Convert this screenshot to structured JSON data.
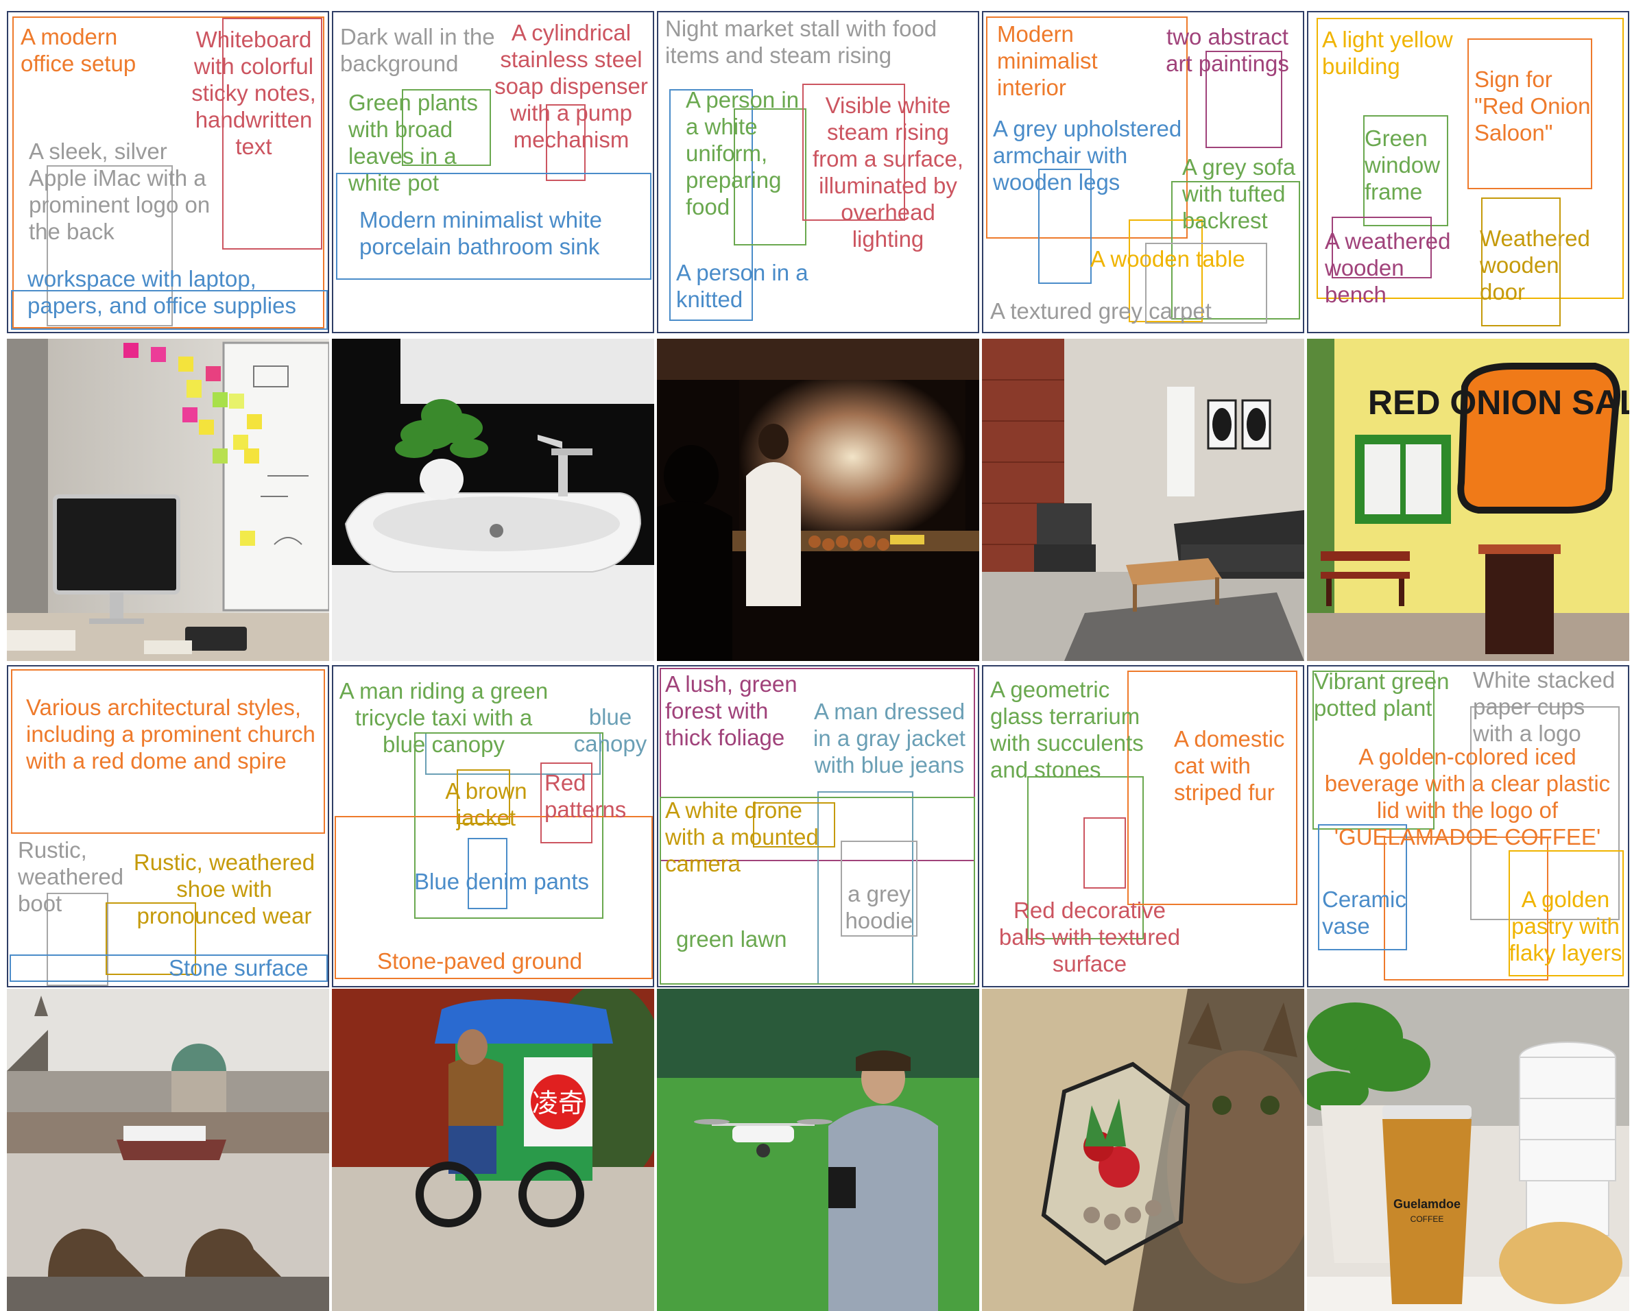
{
  "rows": [
    {
      "layouts": [
        {
          "labels": [
            {
              "text": "A modern\noffice setup",
              "color": "orange"
            },
            {
              "text": "Whiteboard\nwith colorful\nsticky notes,\nhandwritten\ntext",
              "color": "red"
            },
            {
              "text": "A sleek, silver\nApple iMac with a\nprominent logo on\nthe back",
              "color": "gray"
            },
            {
              "text": "workspace with laptop,\npapers, and office supplies",
              "color": "blue"
            }
          ]
        },
        {
          "labels": [
            {
              "text": "Dark wall in the\nbackground",
              "color": "gray"
            },
            {
              "text": "A cylindrical\nstainless steel\nsoap dispenser\nwith a pump\nmechanism",
              "color": "red"
            },
            {
              "text": "Green plants\nwith broad\nleaves in a\nwhite pot",
              "color": "green"
            },
            {
              "text": "Modern minimalist white\nporcelain bathroom sink",
              "color": "blue"
            }
          ]
        },
        {
          "labels": [
            {
              "text": "Night market stall with food\nitems and steam rising",
              "color": "gray"
            },
            {
              "text": "A person in\na white\nuniform,\npreparing\nfood",
              "color": "green"
            },
            {
              "text": "Visible white\nsteam rising\nfrom a surface,\nilluminated by\noverhead\nlighting",
              "color": "red"
            },
            {
              "text": "A person in a\nknitted",
              "color": "blue"
            }
          ]
        },
        {
          "labels": [
            {
              "text": "Modern\nminimalist\ninterior",
              "color": "orange"
            },
            {
              "text": "two abstract\nart paintings",
              "color": "purple"
            },
            {
              "text": "A grey upholstered\narmchair with\nwooden legs",
              "color": "blue"
            },
            {
              "text": "A grey sofa\nwith tufted\nbackrest",
              "color": "green"
            },
            {
              "text": "A wooden table",
              "color": "yellow"
            },
            {
              "text": "A textured grey carpet",
              "color": "gray"
            }
          ]
        },
        {
          "labels": [
            {
              "text": "A light yellow\nbuilding",
              "color": "yellow"
            },
            {
              "text": "Sign for\n\"Red Onion\nSaloon\"",
              "color": "orange"
            },
            {
              "text": "Green\nwindow\nframe",
              "color": "green"
            },
            {
              "text": "A weathered\nwooden\nbench",
              "color": "purple"
            },
            {
              "text": "Weathered\nwooden\ndoor",
              "color": "gold"
            }
          ]
        }
      ],
      "photos": [
        {
          "sign_text": ""
        },
        {
          "sign_text": ""
        },
        {
          "sign_text": ""
        },
        {
          "sign_text": ""
        },
        {
          "sign_text": "RED ONION SALOIN"
        }
      ]
    },
    {
      "layouts": [
        {
          "labels": [
            {
              "text": "Various architectural styles,\nincluding a prominent church\nwith a red dome and spire",
              "color": "orange"
            },
            {
              "text": "Rustic,\nweathered\nboot",
              "color": "gray"
            },
            {
              "text": "Rustic, weathered\nshoe with\npronounced wear",
              "color": "gold"
            },
            {
              "text": "Stone surface",
              "color": "blue"
            }
          ]
        },
        {
          "labels": [
            {
              "text": "A man riding a green\ntricycle taxi with a\nblue canopy",
              "color": "green"
            },
            {
              "text": "blue\ncanopy",
              "color": "teal"
            },
            {
              "text": "A brown\njacket",
              "color": "gold"
            },
            {
              "text": "Red\npatterns",
              "color": "red"
            },
            {
              "text": "Blue denim pants",
              "color": "blue"
            },
            {
              "text": "Stone-paved ground",
              "color": "orange"
            }
          ]
        },
        {
          "labels": [
            {
              "text": "A lush, green\nforest with\nthick foliage",
              "color": "purple"
            },
            {
              "text": "A man dressed\nin a gray jacket\nwith blue jeans",
              "color": "teal"
            },
            {
              "text": "A white drone\nwith a mounted\ncamera",
              "color": "gold"
            },
            {
              "text": "a grey\nhoodie",
              "color": "gray"
            },
            {
              "text": "green lawn",
              "color": "green"
            }
          ]
        },
        {
          "labels": [
            {
              "text": "A geometric\nglass terrarium\nwith succulents\nand stones",
              "color": "green"
            },
            {
              "text": "A domestic\ncat with\nstriped fur",
              "color": "orange"
            },
            {
              "text": "Red decorative\nballs with textured\nsurface",
              "color": "red"
            }
          ]
        },
        {
          "labels": [
            {
              "text": "Vibrant green\npotted plant",
              "color": "green"
            },
            {
              "text": "White stacked\npaper cups\nwith a logo",
              "color": "gray"
            },
            {
              "text": "A  golden-colored iced\nbeverage with a clear plastic\nlid with the logo of\n'GUELAMADOE COFFEE'",
              "color": "orange"
            },
            {
              "text": "Ceramic\nvase",
              "color": "blue"
            },
            {
              "text": "A golden\npastry with\nflaky layers",
              "color": "yellow"
            }
          ]
        }
      ],
      "photos": [
        {
          "sign_text": ""
        },
        {
          "sign_text": "凌奇"
        },
        {
          "sign_text": ""
        },
        {
          "sign_text": ""
        },
        {
          "sign_text": "Guelamdoe",
          "sign_subtext": "COFFEE"
        }
      ]
    }
  ]
}
